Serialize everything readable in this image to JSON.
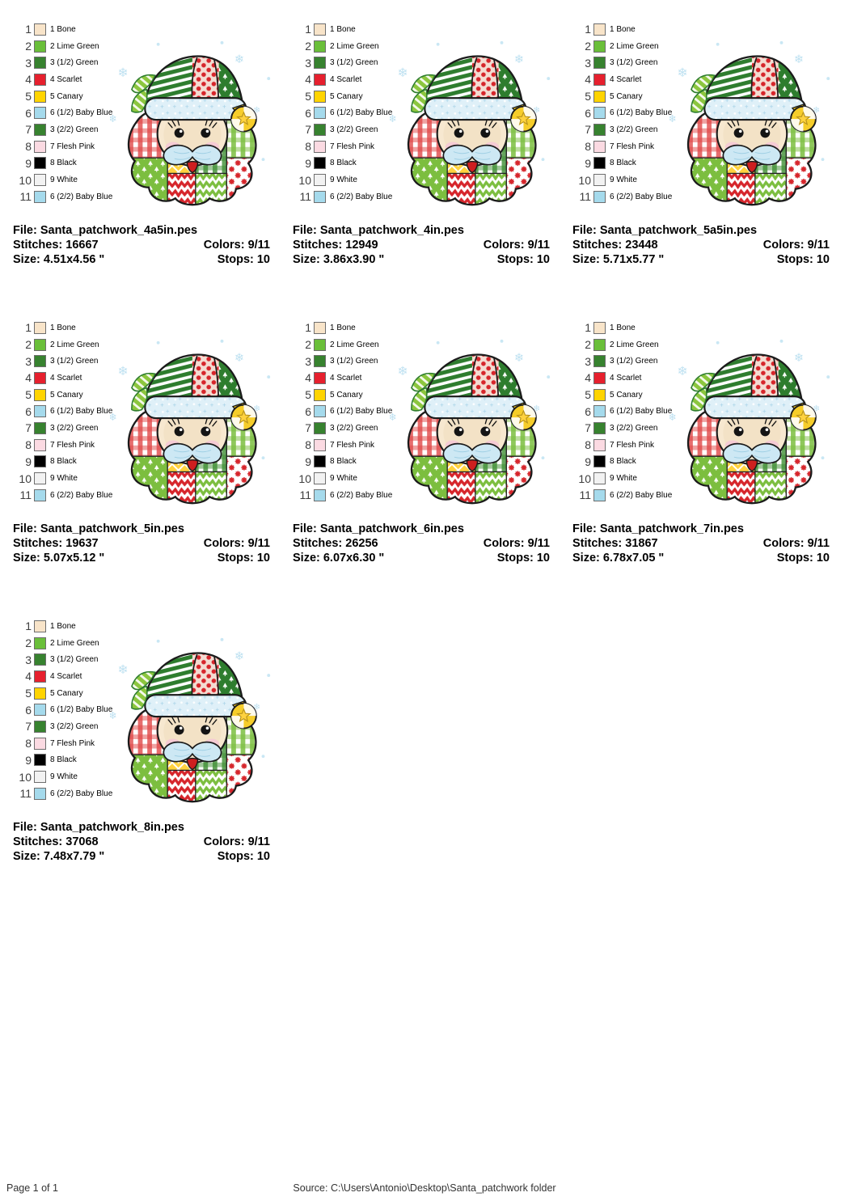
{
  "palette": {
    "rows": [
      {
        "num": "1",
        "label": "1 Bone",
        "hex": "#F8E4C9"
      },
      {
        "num": "2",
        "label": "2 Lime Green",
        "hex": "#6ABF3A"
      },
      {
        "num": "3",
        "label": "3 (1/2) Green",
        "hex": "#37822F"
      },
      {
        "num": "4",
        "label": "4 Scarlet",
        "hex": "#E6202E"
      },
      {
        "num": "5",
        "label": "5 Canary",
        "hex": "#FFD400"
      },
      {
        "num": "6",
        "label": "6 (1/2) Baby Blue",
        "hex": "#A5DAEC"
      },
      {
        "num": "7",
        "label": "3 (2/2) Green",
        "hex": "#37822F"
      },
      {
        "num": "8",
        "label": "7 Flesh Pink",
        "hex": "#FBDAE2"
      },
      {
        "num": "9",
        "label": "8 Black",
        "hex": "#000000"
      },
      {
        "num": "10",
        "label": "9 White",
        "hex": "#F2F2F2"
      },
      {
        "num": "11",
        "label": "6 (2/2) Baby Blue",
        "hex": "#A5DAEC"
      }
    ]
  },
  "designs": [
    {
      "file": "File: Santa_patchwork_4a5in.pes",
      "stitches": "Stitches: 16667",
      "colors": "Colors: 9/11",
      "size": "Size: 4.51x4.56 \"",
      "stops": "Stops: 10"
    },
    {
      "file": "File: Santa_patchwork_4in.pes",
      "stitches": "Stitches: 12949",
      "colors": "Colors: 9/11",
      "size": "Size: 3.86x3.90 \"",
      "stops": "Stops: 10"
    },
    {
      "file": "File: Santa_patchwork_5a5in.pes",
      "stitches": "Stitches: 23448",
      "colors": "Colors: 9/11",
      "size": "Size: 5.71x5.77 \"",
      "stops": "Stops: 10"
    },
    {
      "file": "File: Santa_patchwork_5in.pes",
      "stitches": "Stitches: 19637",
      "colors": "Colors: 9/11",
      "size": "Size: 5.07x5.12 \"",
      "stops": "Stops: 10"
    },
    {
      "file": "File: Santa_patchwork_6in.pes",
      "stitches": "Stitches: 26256",
      "colors": "Colors: 9/11",
      "size": "Size: 6.07x6.30 \"",
      "stops": "Stops: 10"
    },
    {
      "file": "File: Santa_patchwork_7in.pes",
      "stitches": "Stitches: 31867",
      "colors": "Colors: 9/11",
      "size": "Size: 6.78x7.05 \"",
      "stops": "Stops: 10"
    },
    {
      "file": "File: Santa_patchwork_8in.pes",
      "stitches": "Stitches: 37068",
      "colors": "Colors: 9/11",
      "size": "Size: 7.48x7.79 \"",
      "stops": "Stops: 10"
    }
  ],
  "footer": {
    "page": "Page 1 of 1",
    "source": "Source: C:\\Users\\Antonio\\Desktop\\Santa_patchwork folder"
  },
  "artwork": {
    "subject": "patchwork santa face embroidery preview",
    "snowflake_color": "#BEE1F1",
    "outline_color": "#1B1B1B",
    "scarlet": "#D6252B",
    "dark_green": "#2E7D2E",
    "lime_green": "#7CBE3F",
    "canary": "#FFD23F",
    "baby_blue": "#CDE8F4",
    "bone": "#F7E8D0",
    "flesh_pink": "#F5CBD4"
  }
}
